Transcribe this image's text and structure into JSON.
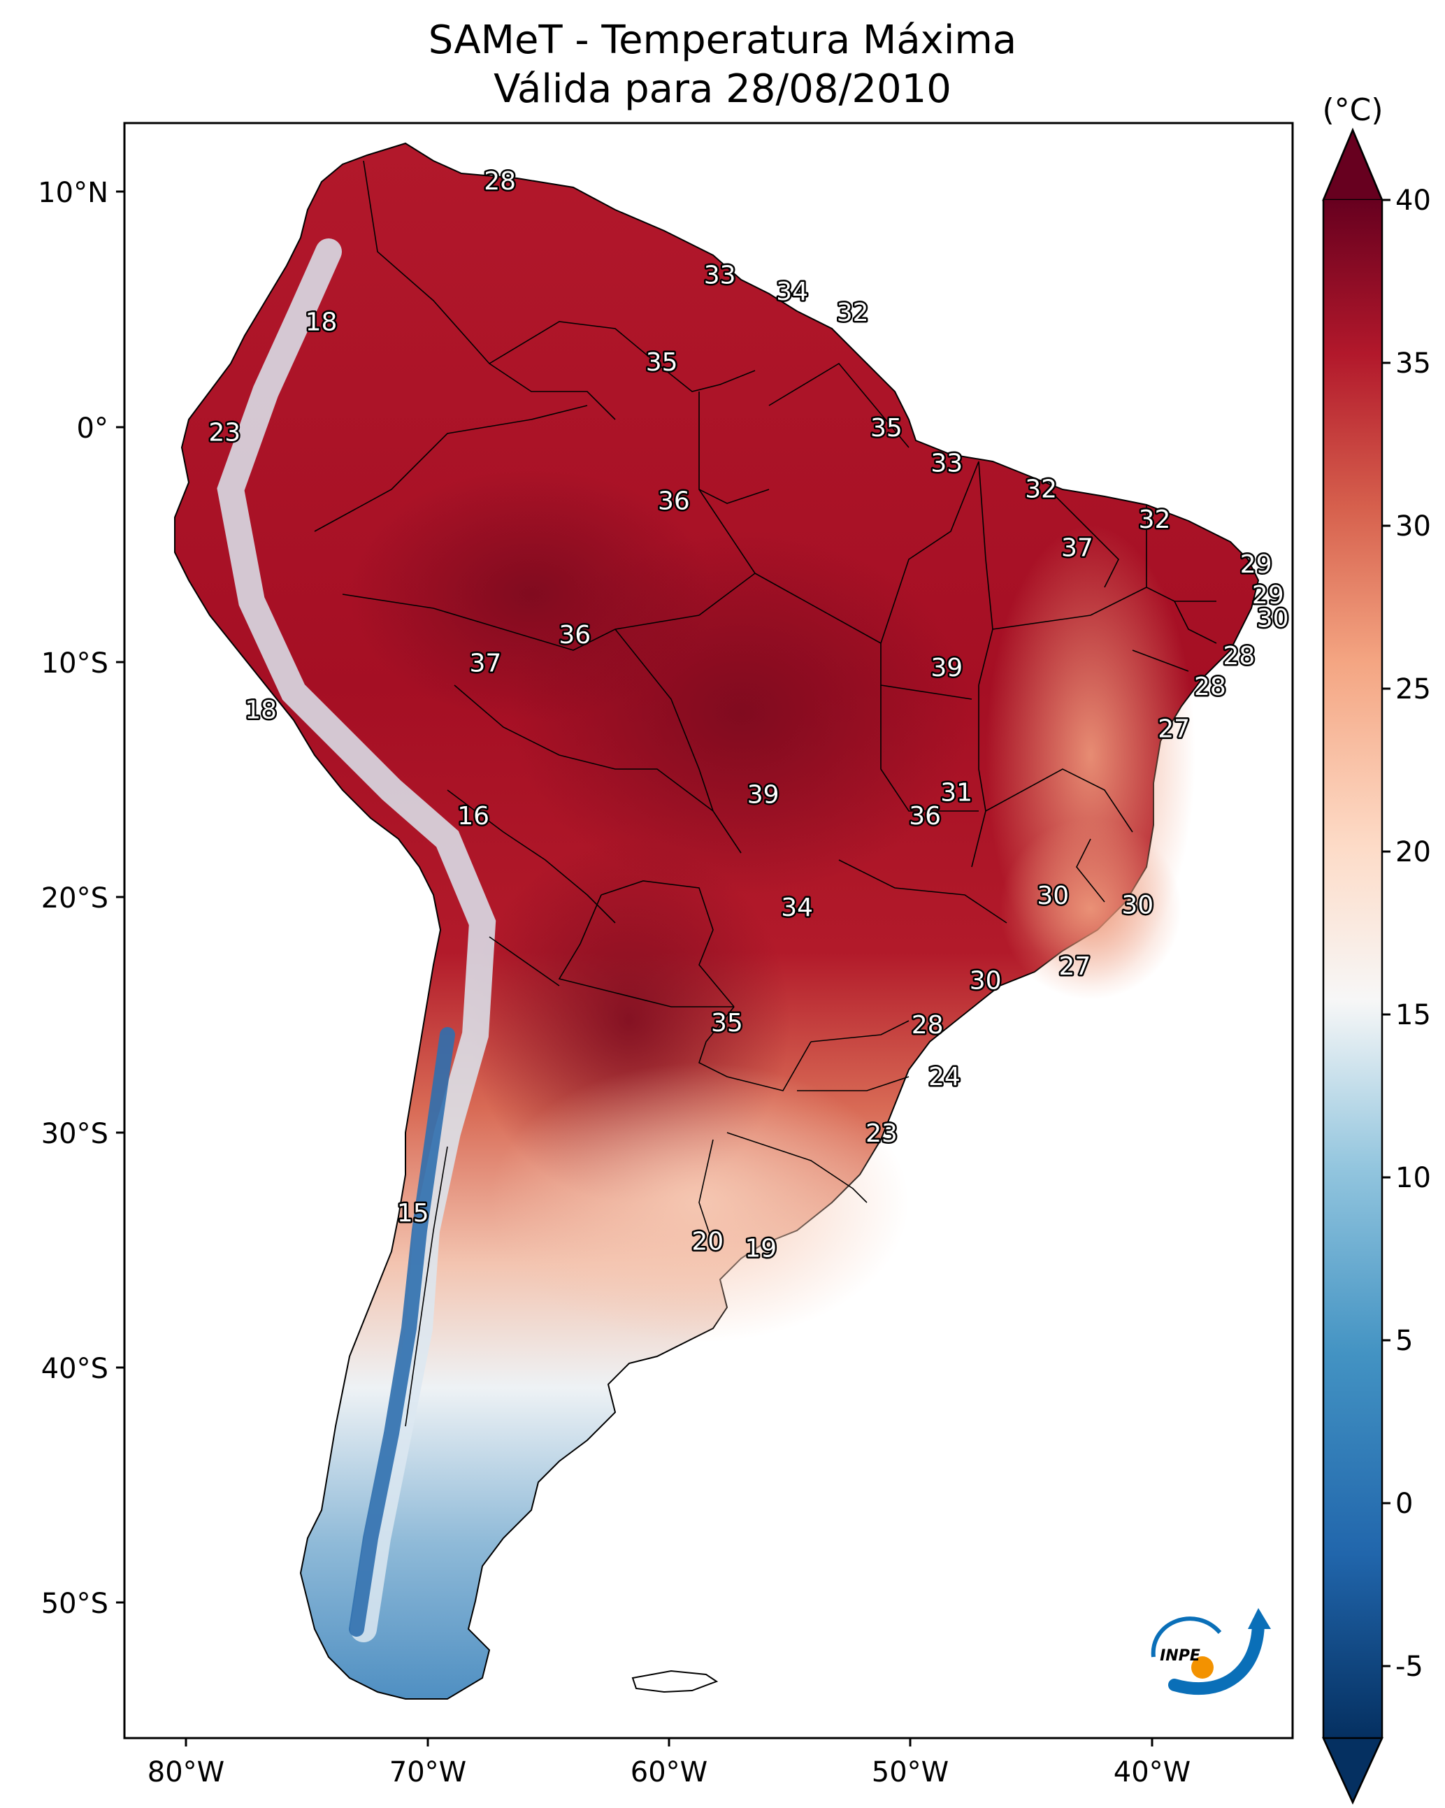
{
  "title": {
    "line1": "SAMeT - Temperatura Máxima",
    "line2": "Válida para 28/08/2010"
  },
  "axes": {
    "lon_labels": [
      "80°W",
      "70°W",
      "60°W",
      "50°W",
      "40°W"
    ],
    "lat_labels": [
      "10°N",
      "0°",
      "10°S",
      "20°S",
      "30°S",
      "40°S",
      "50°S"
    ]
  },
  "colorbar": {
    "unit": "(°C)",
    "ticks": [
      "40",
      "35",
      "30",
      "25",
      "20",
      "15",
      "10",
      "5",
      "0",
      "-5"
    ],
    "min": -5,
    "max": 40
  },
  "logo": {
    "text": "INPE",
    "orange": "#f39200",
    "blue": "#0a6fb8"
  },
  "map_labels": [
    {
      "text": "28",
      "lon": -67,
      "lat": 10.5
    },
    {
      "text": "33",
      "lon": -57.9,
      "lat": 6.5
    },
    {
      "text": "34",
      "lon": -54.9,
      "lat": 5.8
    },
    {
      "text": "32",
      "lon": -52.4,
      "lat": 4.9
    },
    {
      "text": "18",
      "lon": -74.4,
      "lat": 4.5
    },
    {
      "text": "35",
      "lon": -60.3,
      "lat": 2.8
    },
    {
      "text": "23",
      "lon": -78.4,
      "lat": -0.2
    },
    {
      "text": "35",
      "lon": -51.0,
      "lat": 0.0
    },
    {
      "text": "33",
      "lon": -48.5,
      "lat": -1.5
    },
    {
      "text": "32",
      "lon": -44.6,
      "lat": -2.6
    },
    {
      "text": "36",
      "lon": -59.8,
      "lat": -3.1
    },
    {
      "text": "32",
      "lon": -39.9,
      "lat": -3.9
    },
    {
      "text": "37",
      "lon": -43.1,
      "lat": -5.1
    },
    {
      "text": "29",
      "lon": -35.7,
      "lat": -5.8
    },
    {
      "text": "29",
      "lon": -35.2,
      "lat": -7.1
    },
    {
      "text": "30",
      "lon": -35.0,
      "lat": -8.1
    },
    {
      "text": "36",
      "lon": -63.9,
      "lat": -8.8
    },
    {
      "text": "37",
      "lon": -67.6,
      "lat": -10.0
    },
    {
      "text": "28",
      "lon": -36.4,
      "lat": -9.7
    },
    {
      "text": "39",
      "lon": -48.5,
      "lat": -10.2
    },
    {
      "text": "28",
      "lon": -37.6,
      "lat": -11.0
    },
    {
      "text": "18",
      "lon": -76.9,
      "lat": -12.0
    },
    {
      "text": "27",
      "lon": -39.1,
      "lat": -12.8
    },
    {
      "text": "31",
      "lon": -48.1,
      "lat": -15.5
    },
    {
      "text": "39",
      "lon": -56.1,
      "lat": -15.6
    },
    {
      "text": "36",
      "lon": -49.4,
      "lat": -16.5
    },
    {
      "text": "16",
      "lon": -68.1,
      "lat": -16.5
    },
    {
      "text": "30",
      "lon": -44.1,
      "lat": -19.9
    },
    {
      "text": "30",
      "lon": -40.6,
      "lat": -20.3
    },
    {
      "text": "34",
      "lon": -54.7,
      "lat": -20.4
    },
    {
      "text": "27",
      "lon": -43.2,
      "lat": -22.9
    },
    {
      "text": "30",
      "lon": -46.9,
      "lat": -23.5
    },
    {
      "text": "35",
      "lon": -57.6,
      "lat": -25.3
    },
    {
      "text": "28",
      "lon": -49.3,
      "lat": -25.4
    },
    {
      "text": "24",
      "lon": -48.6,
      "lat": -27.6
    },
    {
      "text": "23",
      "lon": -51.2,
      "lat": -30.0
    },
    {
      "text": "15",
      "lon": -70.6,
      "lat": -33.4
    },
    {
      "text": "20",
      "lon": -58.4,
      "lat": -34.6
    },
    {
      "text": "19",
      "lon": -56.2,
      "lat": -34.9
    }
  ]
}
